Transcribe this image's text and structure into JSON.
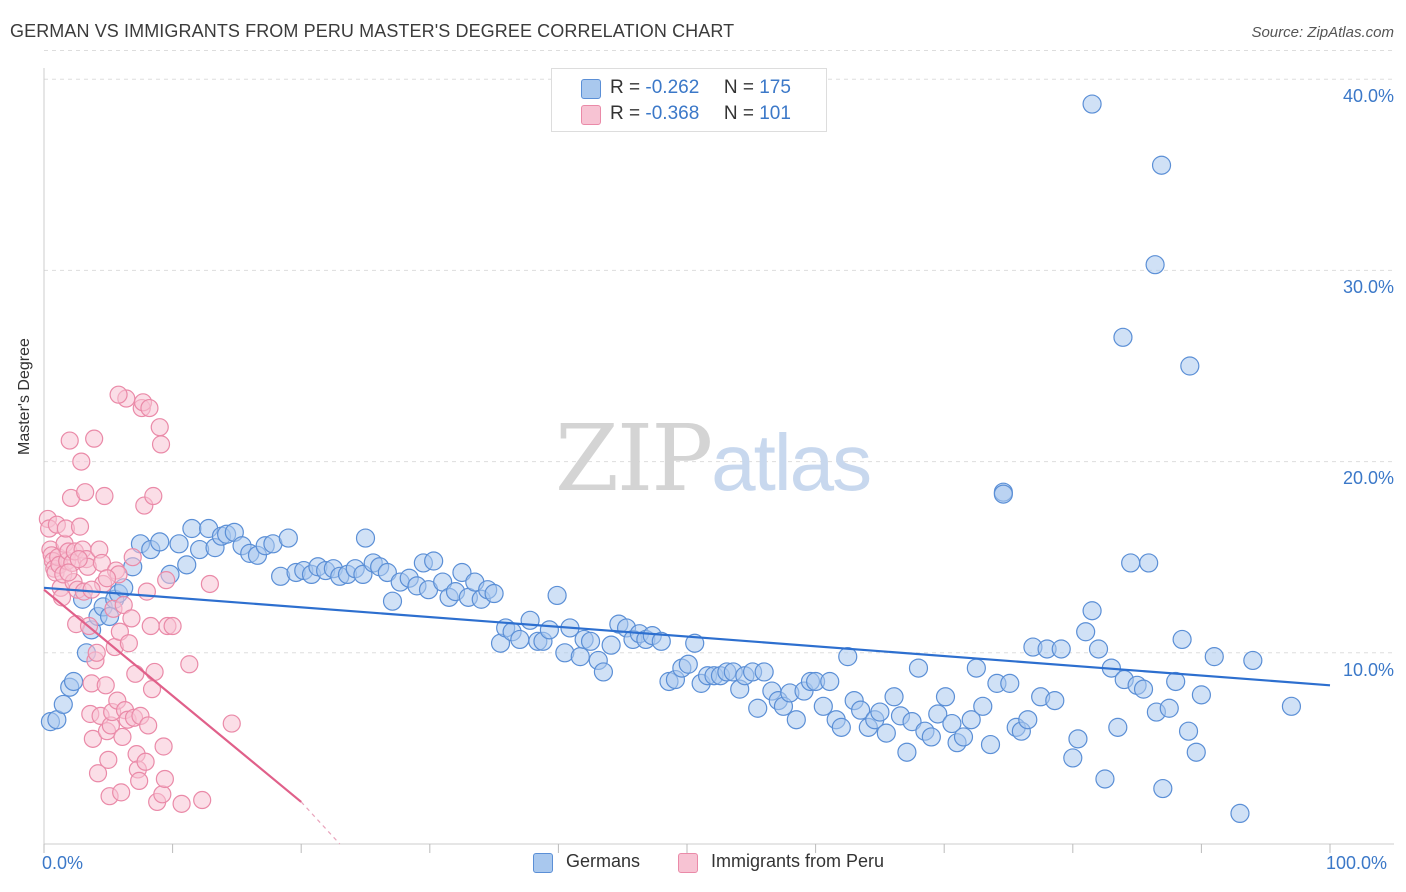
{
  "title": "GERMAN VS IMMIGRANTS FROM PERU MASTER'S DEGREE CORRELATION CHART",
  "source": "Source: ZipAtlas.com",
  "watermark": {
    "zip": "ZIP",
    "atlas": "atlas"
  },
  "legend": {
    "german": {
      "r_label": "R =",
      "r_value": "-0.262",
      "n_label": "N =",
      "n_value": "175"
    },
    "peru": {
      "r_label": "R =",
      "r_value": "-0.368",
      "n_label": "N =",
      "n_value": "101"
    }
  },
  "bottom_legend": {
    "german": "Germans",
    "peru": "Immigrants from Peru"
  },
  "colors": {
    "german_fill": "#a9c8ee",
    "german_stroke": "#5b8fd6",
    "german_line": "#2d6fcf",
    "peru_fill": "#f7c3d3",
    "peru_stroke": "#ea8aa8",
    "peru_line": "#e0608a",
    "axis_text": "#3b78c8",
    "grid": "#dddddd"
  },
  "chart_data": {
    "type": "scatter",
    "title": "GERMAN VS IMMIGRANTS FROM PERU MASTER'S DEGREE CORRELATION CHART",
    "xlabel": "",
    "ylabel": "Master's Degree",
    "xlim": [
      0,
      100
    ],
    "ylim": [
      0,
      41.5
    ],
    "x_tick_labels": [
      "0.0%",
      "100.0%"
    ],
    "y_ticks": [
      10,
      20,
      30,
      40
    ],
    "y_tick_labels": [
      "10.0%",
      "20.0%",
      "30.0%",
      "40.0%"
    ],
    "grid": true,
    "series": [
      {
        "name": "Germans",
        "r": -0.262,
        "n": 175,
        "trend": {
          "x": [
            0,
            100
          ],
          "y": [
            13.4,
            8.3
          ]
        },
        "points": [
          [
            0.5,
            6.4
          ],
          [
            1,
            6.5
          ],
          [
            1.5,
            7.3
          ],
          [
            2,
            8.2
          ],
          [
            2.3,
            8.5
          ],
          [
            3,
            12.8
          ],
          [
            3.3,
            10
          ],
          [
            3.7,
            11.2
          ],
          [
            4.2,
            11.9
          ],
          [
            4.6,
            12.4
          ],
          [
            5.1,
            11.9
          ],
          [
            5.5,
            12.8
          ],
          [
            5.8,
            13.1
          ],
          [
            6.2,
            13.4
          ],
          [
            6.9,
            14.5
          ],
          [
            7.5,
            15.7
          ],
          [
            8.3,
            15.4
          ],
          [
            9,
            15.8
          ],
          [
            9.8,
            14.1
          ],
          [
            10.5,
            15.7
          ],
          [
            11.1,
            14.6
          ],
          [
            11.5,
            16.5
          ],
          [
            12.1,
            15.4
          ],
          [
            12.8,
            16.5
          ],
          [
            13.3,
            15.5
          ],
          [
            13.8,
            16.1
          ],
          [
            14.2,
            16.2
          ],
          [
            14.8,
            16.3
          ],
          [
            15.4,
            15.6
          ],
          [
            16,
            15.2
          ],
          [
            16.6,
            15.1
          ],
          [
            17.2,
            15.6
          ],
          [
            17.8,
            15.7
          ],
          [
            18.4,
            14
          ],
          [
            19,
            16
          ],
          [
            19.6,
            14.2
          ],
          [
            20.2,
            14.3
          ],
          [
            20.8,
            14.1
          ],
          [
            21.3,
            14.5
          ],
          [
            21.9,
            14.3
          ],
          [
            22.5,
            14.4
          ],
          [
            23,
            14
          ],
          [
            23.6,
            14.1
          ],
          [
            24.2,
            14.4
          ],
          [
            24.8,
            14.1
          ],
          [
            25,
            16
          ],
          [
            25.6,
            14.7
          ],
          [
            26.1,
            14.5
          ],
          [
            26.7,
            14.2
          ],
          [
            27.1,
            12.7
          ],
          [
            27.7,
            13.7
          ],
          [
            28.4,
            13.9
          ],
          [
            29,
            13.5
          ],
          [
            29.5,
            14.7
          ],
          [
            29.9,
            13.3
          ],
          [
            30.3,
            14.8
          ],
          [
            31,
            13.7
          ],
          [
            31.5,
            12.9
          ],
          [
            32,
            13.2
          ],
          [
            32.5,
            14.2
          ],
          [
            33,
            12.9
          ],
          [
            33.5,
            13.7
          ],
          [
            34,
            12.8
          ],
          [
            34.5,
            13.3
          ],
          [
            35,
            13.1
          ],
          [
            35.5,
            10.5
          ],
          [
            35.9,
            11.3
          ],
          [
            36.4,
            11.1
          ],
          [
            37,
            10.7
          ],
          [
            37.8,
            11.7
          ],
          [
            38.4,
            10.6
          ],
          [
            38.8,
            10.6
          ],
          [
            39.3,
            11.2
          ],
          [
            39.9,
            13
          ],
          [
            40.5,
            10
          ],
          [
            40.9,
            11.3
          ],
          [
            41.7,
            9.8
          ],
          [
            42,
            10.7
          ],
          [
            42.5,
            10.6
          ],
          [
            43.1,
            9.6
          ],
          [
            43.5,
            9
          ],
          [
            44.1,
            10.4
          ],
          [
            44.7,
            11.5
          ],
          [
            45.3,
            11.3
          ],
          [
            45.8,
            10.7
          ],
          [
            46.3,
            11
          ],
          [
            46.8,
            10.7
          ],
          [
            47.3,
            10.9
          ],
          [
            48,
            10.6
          ],
          [
            48.6,
            8.5
          ],
          [
            49.1,
            8.6
          ],
          [
            49.6,
            9.2
          ],
          [
            50.1,
            9.4
          ],
          [
            50.6,
            10.5
          ],
          [
            51.1,
            8.4
          ],
          [
            51.6,
            8.8
          ],
          [
            52.1,
            8.8
          ],
          [
            52.6,
            8.8
          ],
          [
            53.1,
            9
          ],
          [
            53.6,
            9
          ],
          [
            54.1,
            8.1
          ],
          [
            54.5,
            8.8
          ],
          [
            55.1,
            9
          ],
          [
            55.5,
            7.1
          ],
          [
            56,
            9
          ],
          [
            56.6,
            8
          ],
          [
            57.1,
            7.5
          ],
          [
            57.5,
            7.2
          ],
          [
            58,
            7.9
          ],
          [
            58.5,
            6.5
          ],
          [
            59.1,
            8
          ],
          [
            59.6,
            8.5
          ],
          [
            60,
            8.5
          ],
          [
            60.6,
            7.2
          ],
          [
            61.1,
            8.5
          ],
          [
            61.6,
            6.5
          ],
          [
            62,
            6.1
          ],
          [
            62.5,
            9.8
          ],
          [
            63,
            7.5
          ],
          [
            63.5,
            7
          ],
          [
            64.1,
            6.1
          ],
          [
            64.6,
            6.5
          ],
          [
            65,
            6.9
          ],
          [
            65.5,
            5.8
          ],
          [
            66.1,
            7.7
          ],
          [
            66.6,
            6.7
          ],
          [
            67.1,
            4.8
          ],
          [
            67.5,
            6.4
          ],
          [
            68,
            9.2
          ],
          [
            68.5,
            5.9
          ],
          [
            69,
            5.6
          ],
          [
            69.5,
            6.8
          ],
          [
            70.1,
            7.7
          ],
          [
            70.6,
            6.3
          ],
          [
            71,
            5.3
          ],
          [
            71.5,
            5.6
          ],
          [
            72.1,
            6.5
          ],
          [
            72.5,
            9.2
          ],
          [
            73,
            7.2
          ],
          [
            73.6,
            5.2
          ],
          [
            74.1,
            8.4
          ],
          [
            74.6,
            18.4
          ],
          [
            75.1,
            8.4
          ],
          [
            75.6,
            6.1
          ],
          [
            76,
            5.9
          ],
          [
            76.5,
            6.5
          ],
          [
            76.9,
            10.3
          ],
          [
            77.5,
            7.7
          ],
          [
            78,
            10.2
          ],
          [
            78.6,
            7.5
          ],
          [
            79.1,
            10.2
          ],
          [
            80,
            4.5
          ],
          [
            80.4,
            5.5
          ],
          [
            81,
            11.1
          ],
          [
            81.5,
            12.2
          ],
          [
            82,
            10.2
          ],
          [
            82.5,
            3.4
          ],
          [
            83,
            9.2
          ],
          [
            83.5,
            6.1
          ],
          [
            84,
            8.6
          ],
          [
            84.5,
            14.7
          ],
          [
            85,
            8.3
          ],
          [
            85.5,
            8.1
          ],
          [
            85.9,
            14.7
          ],
          [
            86.5,
            6.9
          ],
          [
            87,
            2.9
          ],
          [
            87.5,
            7.1
          ],
          [
            88,
            8.5
          ],
          [
            88.5,
            10.7
          ],
          [
            89,
            5.9
          ],
          [
            89.6,
            4.8
          ],
          [
            90,
            7.8
          ],
          [
            91,
            9.8
          ],
          [
            93,
            1.6
          ],
          [
            94,
            9.6
          ],
          [
            97,
            7.2
          ],
          [
            81.5,
            38.7
          ],
          [
            86.9,
            35.5
          ],
          [
            86.4,
            30.3
          ],
          [
            83.9,
            26.5
          ],
          [
            89.1,
            25
          ],
          [
            74.6,
            18.3
          ]
        ]
      },
      {
        "name": "Immigrants from Peru",
        "r": -0.368,
        "n": 101,
        "trend": {
          "x": [
            0,
            20
          ],
          "y": [
            13.3,
            2.2
          ],
          "dashed_extension_to": [
            23,
            0
          ]
        },
        "points": [
          [
            0.3,
            17
          ],
          [
            0.4,
            16.5
          ],
          [
            0.5,
            15.4
          ],
          [
            0.6,
            15.1
          ],
          [
            0.7,
            14.8
          ],
          [
            0.8,
            14.4
          ],
          [
            0.9,
            14.2
          ],
          [
            1,
            16.7
          ],
          [
            1.1,
            15
          ],
          [
            1.2,
            14.6
          ],
          [
            1.3,
            13.4
          ],
          [
            1.4,
            12.9
          ],
          [
            1.5,
            14.1
          ],
          [
            1.6,
            15.7
          ],
          [
            1.7,
            16.5
          ],
          [
            1.8,
            14.8
          ],
          [
            1.9,
            15.3
          ],
          [
            2,
            21.1
          ],
          [
            2.1,
            18.1
          ],
          [
            2.2,
            14.7
          ],
          [
            2.3,
            13.7
          ],
          [
            2.4,
            15.3
          ],
          [
            2.5,
            11.5
          ],
          [
            2.6,
            13.3
          ],
          [
            2.8,
            16.6
          ],
          [
            2.9,
            20
          ],
          [
            3,
            15.4
          ],
          [
            3.1,
            13.2
          ],
          [
            3.2,
            18.4
          ],
          [
            3.3,
            14.9
          ],
          [
            3.4,
            14.5
          ],
          [
            3.5,
            11.4
          ],
          [
            3.6,
            6.8
          ],
          [
            3.7,
            8.4
          ],
          [
            3.8,
            5.5
          ],
          [
            3.9,
            21.2
          ],
          [
            4,
            9.6
          ],
          [
            4.1,
            10
          ],
          [
            4.2,
            3.7
          ],
          [
            4.3,
            15.4
          ],
          [
            4.4,
            6.7
          ],
          [
            4.5,
            14.7
          ],
          [
            4.6,
            13.6
          ],
          [
            4.7,
            18.2
          ],
          [
            4.8,
            8.3
          ],
          [
            4.9,
            5.9
          ],
          [
            5,
            4.4
          ],
          [
            5.1,
            2.5
          ],
          [
            5.2,
            6.2
          ],
          [
            5.3,
            6.9
          ],
          [
            5.4,
            12.3
          ],
          [
            5.5,
            10.3
          ],
          [
            5.6,
            14.3
          ],
          [
            5.7,
            7.5
          ],
          [
            5.8,
            14.1
          ],
          [
            5.9,
            11.1
          ],
          [
            6,
            2.7
          ],
          [
            6.1,
            5.6
          ],
          [
            6.2,
            12.5
          ],
          [
            6.3,
            7
          ],
          [
            6.4,
            23.3
          ],
          [
            6.5,
            6.5
          ],
          [
            6.6,
            10.5
          ],
          [
            6.8,
            11.8
          ],
          [
            7,
            6.6
          ],
          [
            7.1,
            8.9
          ],
          [
            7.2,
            4.7
          ],
          [
            7.3,
            3.9
          ],
          [
            7.4,
            3.3
          ],
          [
            7.5,
            6.7
          ],
          [
            7.6,
            22.8
          ],
          [
            7.7,
            23.1
          ],
          [
            7.8,
            17.7
          ],
          [
            7.9,
            4.3
          ],
          [
            8,
            13.2
          ],
          [
            8.1,
            6.2
          ],
          [
            8.2,
            22.8
          ],
          [
            8.3,
            11.4
          ],
          [
            8.4,
            8.1
          ],
          [
            8.5,
            18.2
          ],
          [
            8.6,
            9
          ],
          [
            8.8,
            2.2
          ],
          [
            9,
            21.8
          ],
          [
            9.1,
            20.9
          ],
          [
            9.2,
            2.6
          ],
          [
            9.3,
            5.1
          ],
          [
            9.4,
            3.4
          ],
          [
            9.5,
            13.8
          ],
          [
            9.6,
            11.4
          ],
          [
            10,
            11.4
          ],
          [
            10.7,
            2.1
          ],
          [
            11.3,
            9.4
          ],
          [
            12.3,
            2.3
          ],
          [
            12.9,
            13.6
          ],
          [
            14.6,
            6.3
          ],
          [
            5.8,
            23.5
          ],
          [
            6.9,
            15
          ],
          [
            2.7,
            14.9
          ],
          [
            3.7,
            13.3
          ],
          [
            1.9,
            14.2
          ],
          [
            4.9,
            13.9
          ]
        ]
      }
    ]
  }
}
